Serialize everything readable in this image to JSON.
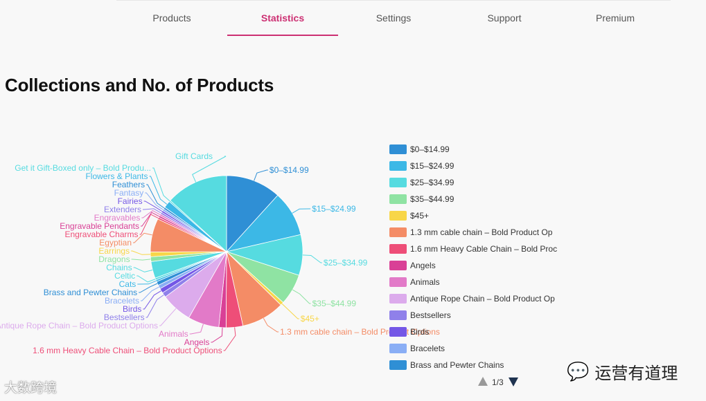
{
  "tabs": [
    {
      "label": "Products",
      "active": false
    },
    {
      "label": "Statistics",
      "active": true
    },
    {
      "label": "Settings",
      "active": false
    },
    {
      "label": "Support",
      "active": false
    },
    {
      "label": "Premium",
      "active": false
    }
  ],
  "page_title": "Collections and No. of Products",
  "chart_data": {
    "type": "pie",
    "title": "Collections and No. of Products",
    "values_note": "slice sizes estimated visually; no values printed",
    "slices": [
      {
        "label": "$0–$14.99",
        "value": 11.5,
        "color": "#2f8fd5"
      },
      {
        "label": "$15–$24.99",
        "value": 9.5,
        "color": "#3cb8e6"
      },
      {
        "label": "$25–$34.99",
        "value": 8.5,
        "color": "#56dbe0"
      },
      {
        "label": "$35–$44.99",
        "value": 6.5,
        "color": "#8fe3a3"
      },
      {
        "label": "$45+",
        "value": 0.7,
        "color": "#f8d648"
      },
      {
        "label": "1.3 mm cable chain – Bold Product Options",
        "value": 9.0,
        "color": "#f48c66"
      },
      {
        "label": "1.6 mm Heavy Cable Chain – Bold Product Options",
        "value": 3.5,
        "color": "#ee4e78"
      },
      {
        "label": "Angels",
        "value": 1.5,
        "color": "#d94096"
      },
      {
        "label": "Animals",
        "value": 6.5,
        "color": "#e27ac8"
      },
      {
        "label": "Antique Rope Chain – Bold Product Options",
        "value": 6.5,
        "color": "#dcabec"
      },
      {
        "label": "Bestsellers",
        "value": 1.0,
        "color": "#8f80ea"
      },
      {
        "label": "Birds",
        "value": 1.0,
        "color": "#7457e6"
      },
      {
        "label": "Bracelets",
        "value": 0.8,
        "color": "#8aaef5"
      },
      {
        "label": "Brass and Pewter Chains",
        "value": 0.8,
        "color": "#2f8fd5"
      },
      {
        "label": "Cats",
        "value": 0.4,
        "color": "#3cb8e6"
      },
      {
        "label": "Celtic",
        "value": 0.4,
        "color": "#56dbe0"
      },
      {
        "label": "Chains",
        "value": 3.5,
        "color": "#56dbe0"
      },
      {
        "label": "Dragons",
        "value": 1.0,
        "color": "#8fe3a3"
      },
      {
        "label": "Earrings",
        "value": 1.0,
        "color": "#f8d648"
      },
      {
        "label": "Egyptian",
        "value": 7.0,
        "color": "#f48c66"
      },
      {
        "label": "Engravable Charms",
        "value": 0.4,
        "color": "#ee4e78"
      },
      {
        "label": "Engravable Pendants",
        "value": 0.4,
        "color": "#d94096"
      },
      {
        "label": "Engravables",
        "value": 0.4,
        "color": "#e27ac8"
      },
      {
        "label": "Extenders",
        "value": 0.4,
        "color": "#8f80ea"
      },
      {
        "label": "Fairies",
        "value": 0.4,
        "color": "#7457e6"
      },
      {
        "label": "Fantasy",
        "value": 0.4,
        "color": "#8aaef5"
      },
      {
        "label": "Feathers",
        "value": 0.4,
        "color": "#2f8fd5"
      },
      {
        "label": "Flowers & Plants",
        "value": 1.5,
        "color": "#3cb8e6"
      },
      {
        "label": "Get it Gift-Boxed only – Bold Produ...",
        "value": 0.3,
        "color": "#56dbe0"
      },
      {
        "label": "Gift Cards",
        "value": 13.0,
        "color": "#56dbe0"
      }
    ],
    "legend": {
      "placement": "right",
      "page": "1/3",
      "items": [
        "$0–$14.99",
        "$15–$24.99",
        "$25–$34.99",
        "$35–$44.99",
        "$45+",
        "1.3 mm cable chain – Bold Product Op",
        "1.6 mm Heavy Cable Chain – Bold Proc",
        "Angels",
        "Animals",
        "Antique Rope Chain – Bold Product Op",
        "Bestsellers",
        "Birds",
        "Bracelets",
        "Brass and Pewter Chains"
      ]
    }
  },
  "watermarks": {
    "left": "大数跨境",
    "right": "运营有道理"
  }
}
